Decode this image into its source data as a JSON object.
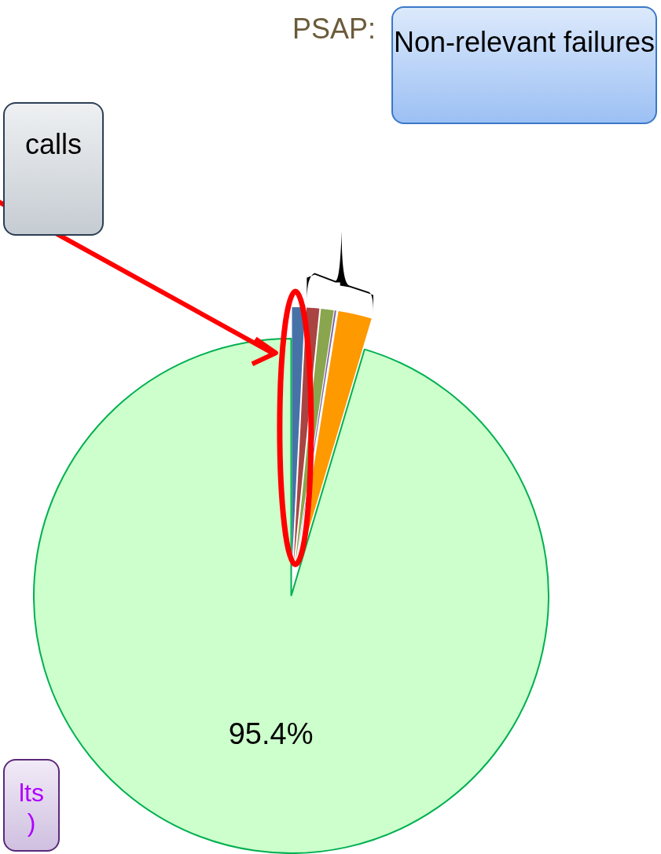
{
  "chart_data": {
    "type": "pie",
    "title": "PSAP:",
    "categories": [
      null,
      null,
      null,
      null,
      null,
      null
    ],
    "values": [
      0.8,
      0.8,
      0.8,
      0.1,
      2.1,
      95.4
    ],
    "colors": [
      "#4672a8",
      "#a94442",
      "#89a54e",
      "#8064a2",
      "#ff9900",
      "#ccffcc"
    ],
    "value_labels": [
      null,
      null,
      null,
      null,
      null,
      "95.4%"
    ],
    "legend": false,
    "annotations": [
      "Non-relevant failures",
      "calls",
      "lts",
      ")"
    ]
  }
}
